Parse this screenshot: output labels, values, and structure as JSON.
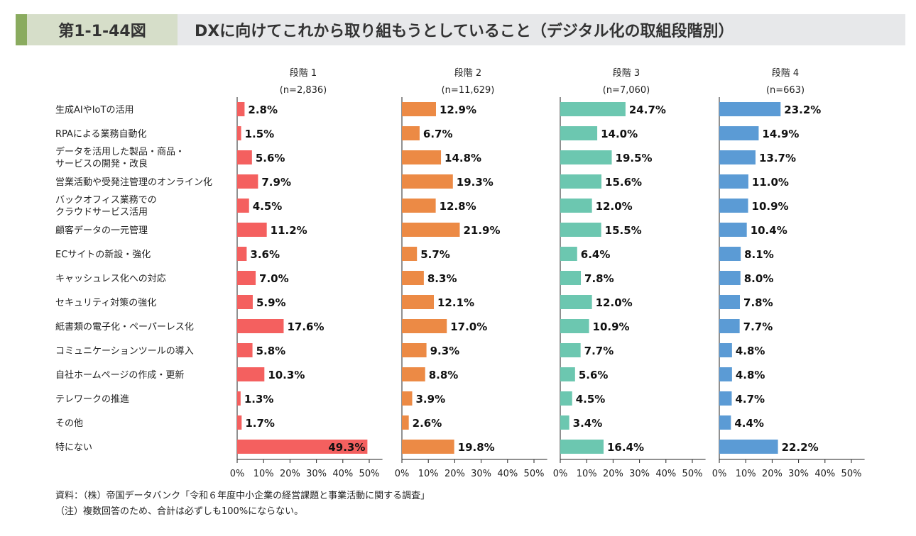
{
  "header": {
    "figure_number": "第1-1-44図",
    "title": "DXに向けてこれから取り組もうとしていること（デジタル化の取組段階別）"
  },
  "chart_data": {
    "type": "bar",
    "orientation": "horizontal",
    "categories": [
      "生成AIやIoTの活用",
      "RPAによる業務自動化",
      "データを活用した製品・商品・\nサービスの開発・改良",
      "営業活動や受発注管理のオンライン化",
      "バックオフィス業務での\nクラウドサービス活用",
      "顧客データの一元管理",
      "ECサイトの新設・強化",
      "キャッシュレス化への対応",
      "セキュリティ対策の強化",
      "紙書類の電子化・ペーパーレス化",
      "コミュニケーションツールの導入",
      "自社ホームページの作成・更新",
      "テレワークの推進",
      "その他",
      "特にない"
    ],
    "xlim": [
      0,
      55
    ],
    "xticks": [
      "0%",
      "10%",
      "20%",
      "30%",
      "40%",
      "50%"
    ],
    "series": [
      {
        "name": "段階 1",
        "n": "(n=2,836)",
        "color": "#f4605f",
        "values": [
          2.8,
          1.5,
          5.6,
          7.9,
          4.5,
          11.2,
          3.6,
          7.0,
          5.9,
          17.6,
          5.8,
          10.3,
          1.3,
          1.7,
          49.3
        ]
      },
      {
        "name": "段階 2",
        "n": "(n=11,629)",
        "color": "#ec8a45",
        "values": [
          12.9,
          6.7,
          14.8,
          19.3,
          12.8,
          21.9,
          5.7,
          8.3,
          12.1,
          17.0,
          9.3,
          8.8,
          3.9,
          2.6,
          19.8
        ]
      },
      {
        "name": "段階 3",
        "n": "(n=7,060)",
        "color": "#6cc7b0",
        "values": [
          24.7,
          14.0,
          19.5,
          15.6,
          12.0,
          15.5,
          6.4,
          7.8,
          12.0,
          10.9,
          7.7,
          5.6,
          4.5,
          3.4,
          16.4
        ]
      },
      {
        "name": "段階 4",
        "n": "(n=663)",
        "color": "#5b9bd5",
        "values": [
          23.2,
          14.9,
          13.7,
          11.0,
          10.9,
          10.4,
          8.1,
          8.0,
          7.8,
          7.7,
          4.8,
          4.8,
          4.7,
          4.4,
          22.2
        ]
      }
    ]
  },
  "notes": {
    "source": "資料：（株）帝国データバンク「令和６年度中小企業の経営課題と事業活動に関する調査」",
    "note": "（注）複数回答のため、合計は必ずしも100%にならない。"
  }
}
